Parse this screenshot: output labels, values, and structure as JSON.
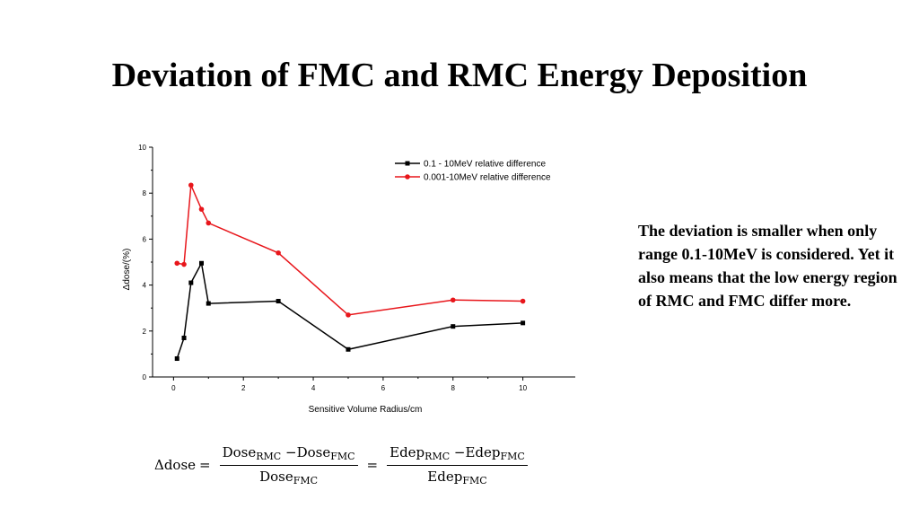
{
  "slide": {
    "title": "Deviation of FMC and RMC Energy Deposition",
    "note": "The deviation is smaller when only range 0.1-10MeV is considered. Yet it also means that the low energy region of RMC and FMC differ more."
  },
  "formula": {
    "lhs": "Δdose",
    "eq": "=",
    "frac1": {
      "num_a": "Dose",
      "num_a_sub": "RMC",
      "minus": "−",
      "num_b": "Dose",
      "num_b_sub": "FMC",
      "den": "Dose",
      "den_sub": "FMC"
    },
    "frac2": {
      "num_a": "Edep",
      "num_a_sub": "RMC",
      "minus": "−",
      "num_b": "Edep",
      "num_b_sub": "FMC",
      "den": "Edep",
      "den_sub": "FMC"
    }
  },
  "chart_data": {
    "type": "line",
    "title": "",
    "xlabel": "Sensitive Volume Radius/cm",
    "ylabel": "Δdose/(%)",
    "xlim": [
      -0.6,
      11.5
    ],
    "ylim": [
      0,
      10
    ],
    "xticks": [
      0,
      2,
      4,
      6,
      8,
      10
    ],
    "yticks": [
      0,
      2,
      4,
      6,
      8,
      10
    ],
    "grid": false,
    "legend_position": "top-right",
    "series": [
      {
        "name": "0.1 - 10MeV relative difference",
        "color": "#000000",
        "marker": "square",
        "x": [
          0.1,
          0.3,
          0.5,
          0.8,
          1.0,
          3.0,
          5.0,
          8.0,
          10.0
        ],
        "y": [
          0.8,
          1.7,
          4.1,
          4.95,
          3.2,
          3.3,
          1.2,
          2.2,
          2.35
        ]
      },
      {
        "name": "0.001-10MeV relative difference",
        "color": "#e8161b",
        "marker": "circle",
        "x": [
          0.1,
          0.3,
          0.5,
          0.8,
          1.0,
          3.0,
          5.0,
          8.0,
          10.0
        ],
        "y": [
          4.95,
          4.9,
          8.35,
          7.3,
          6.7,
          5.4,
          2.7,
          3.35,
          3.3
        ]
      }
    ]
  }
}
